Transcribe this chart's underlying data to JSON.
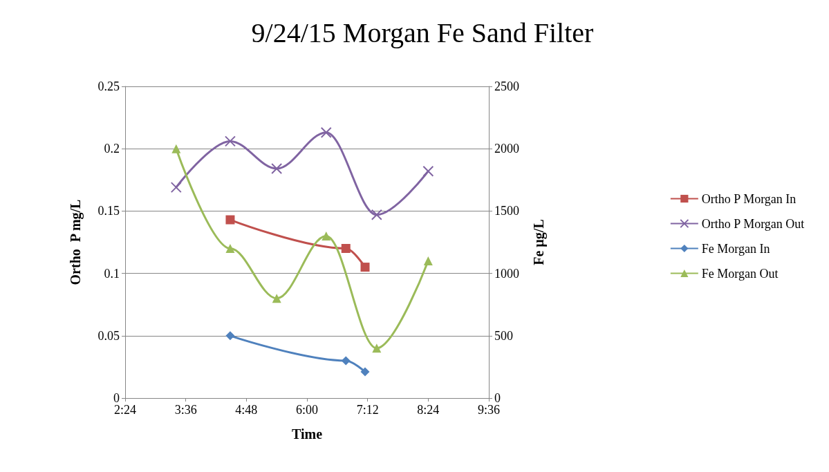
{
  "chart_data": {
    "type": "line",
    "title": "9/24/15 Morgan Fe Sand Filter",
    "xlabel": "Time",
    "ylabel": "Ortho  P mg/L",
    "y2label": "Fe µg/L",
    "xlim": [
      2.4,
      9.6
    ],
    "xticks": [
      {
        "value": 2.4,
        "label": "2:24"
      },
      {
        "value": 3.6,
        "label": "3:36"
      },
      {
        "value": 4.8,
        "label": "4:48"
      },
      {
        "value": 6.0,
        "label": "6:00"
      },
      {
        "value": 7.2,
        "label": "7:12"
      },
      {
        "value": 8.4,
        "label": "8:24"
      },
      {
        "value": 9.6,
        "label": "9:36"
      }
    ],
    "ylim": [
      0,
      0.25
    ],
    "yticks": [
      0,
      0.05,
      0.1,
      0.15,
      0.2,
      0.25
    ],
    "y2lim": [
      0,
      2500
    ],
    "y2ticks": [
      0,
      500,
      1000,
      1500,
      2000,
      2500
    ],
    "grid": "y",
    "legend": "right",
    "series": [
      {
        "name": "Ortho P Morgan In",
        "color": "#c0504d",
        "marker": "square",
        "x": [
          4.48,
          6.77,
          7.15
        ],
        "values": [
          0.143,
          0.12,
          0.105
        ]
      },
      {
        "name": "Ortho P Morgan Out",
        "color": "#8064a2",
        "marker": "cross",
        "x": [
          3.41,
          4.48,
          5.4,
          6.38,
          7.38,
          8.4
        ],
        "values": [
          0.169,
          0.206,
          0.184,
          0.213,
          0.147,
          0.182
        ]
      },
      {
        "name": "Fe Morgan In",
        "color": "#4f81bd",
        "marker": "diamond",
        "axis": "y2",
        "x": [
          4.48,
          6.77,
          7.15
        ],
        "values": [
          500,
          300,
          210
        ]
      },
      {
        "name": "Fe Morgan Out",
        "color": "#9bbb59",
        "marker": "triangle",
        "axis": "y2",
        "x": [
          3.41,
          4.48,
          5.4,
          6.38,
          7.38,
          8.4
        ],
        "values": [
          2000,
          1200,
          800,
          1300,
          400,
          1100
        ]
      }
    ]
  }
}
